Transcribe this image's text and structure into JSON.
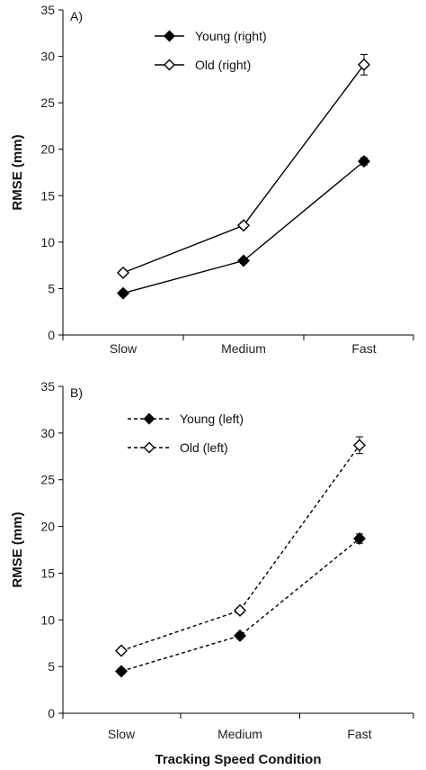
{
  "chart_data": [
    {
      "type": "line",
      "panel_label": "A)",
      "categories": [
        "Slow",
        "Medium",
        "Fast"
      ],
      "ylabel": "RMSE (mm)",
      "xlabel": "",
      "ylim": [
        0,
        35
      ],
      "yticks": [
        0,
        5,
        10,
        15,
        20,
        25,
        30,
        35
      ],
      "grid": false,
      "legend_position": "top-left",
      "series": [
        {
          "name": "Young (right)",
          "marker": "filled-diamond",
          "line": "solid",
          "values": [
            4.5,
            8.0,
            18.7
          ],
          "errors": [
            0.3,
            0.3,
            0.4
          ]
        },
        {
          "name": "Old (right)",
          "marker": "open-diamond",
          "line": "solid",
          "values": [
            6.7,
            11.8,
            29.1
          ],
          "errors": [
            0.3,
            0.3,
            1.1
          ]
        }
      ]
    },
    {
      "type": "line",
      "panel_label": "B)",
      "categories": [
        "Slow",
        "Medium",
        "Fast"
      ],
      "ylabel": "RMSE (mm)",
      "xlabel": "Tracking Speed Condition",
      "ylim": [
        0,
        35
      ],
      "yticks": [
        0,
        5,
        10,
        15,
        20,
        25,
        30,
        35
      ],
      "grid": false,
      "legend_position": "top-left",
      "series": [
        {
          "name": "Young (left)",
          "marker": "filled-diamond",
          "line": "dashed",
          "values": [
            4.5,
            8.3,
            18.7
          ],
          "errors": [
            0.3,
            0.3,
            0.5
          ]
        },
        {
          "name": "Old (left)",
          "marker": "open-diamond",
          "line": "dashed",
          "values": [
            6.7,
            11.0,
            28.7
          ],
          "errors": [
            0.3,
            0.3,
            0.9
          ]
        }
      ]
    }
  ]
}
